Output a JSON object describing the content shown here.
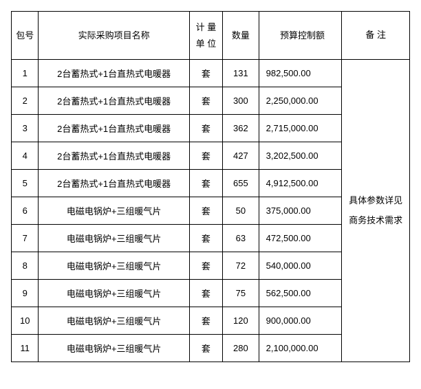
{
  "table": {
    "headers": {
      "package_no": "包号",
      "project_name": "实际采购项目名称",
      "unit": "计 量单 位",
      "quantity": "数量",
      "budget": "预算控制额",
      "remark": "备 注"
    },
    "remark_text": "具体参数详见商务技术需求",
    "rows": [
      {
        "pkg": "1",
        "name": "2台蓄热式+1台直热式电暖器",
        "unit": "套",
        "qty": "131",
        "budget": "982,500.00"
      },
      {
        "pkg": "2",
        "name": "2台蓄热式+1台直热式电暖器",
        "unit": "套",
        "qty": "300",
        "budget": "2,250,000.00"
      },
      {
        "pkg": "3",
        "name": "2台蓄热式+1台直热式电暖器",
        "unit": "套",
        "qty": "362",
        "budget": "2,715,000.00"
      },
      {
        "pkg": "4",
        "name": "2台蓄热式+1台直热式电暖器",
        "unit": "套",
        "qty": "427",
        "budget": "3,202,500.00"
      },
      {
        "pkg": "5",
        "name": "2台蓄热式+1台直热式电暖器",
        "unit": "套",
        "qty": "655",
        "budget": "4,912,500.00"
      },
      {
        "pkg": "6",
        "name": "电磁电锅炉+三组暖气片",
        "unit": "套",
        "qty": "50",
        "budget": "375,000.00"
      },
      {
        "pkg": "7",
        "name": "电磁电锅炉+三组暖气片",
        "unit": "套",
        "qty": "63",
        "budget": "472,500.00"
      },
      {
        "pkg": "8",
        "name": "电磁电锅炉+三组暖气片",
        "unit": "套",
        "qty": "72",
        "budget": "540,000.00"
      },
      {
        "pkg": "9",
        "name": "电磁电锅炉+三组暖气片",
        "unit": "套",
        "qty": "75",
        "budget": "562,500.00"
      },
      {
        "pkg": "10",
        "name": "电磁电锅炉+三组暖气片",
        "unit": "套",
        "qty": "120",
        "budget": "900,000.00"
      },
      {
        "pkg": "11",
        "name": "电磁电锅炉+三组暖气片",
        "unit": "套",
        "qty": "280",
        "budget": "2,100,000.00"
      }
    ],
    "colors": {
      "border": "#000000",
      "background": "#ffffff",
      "text": "#000000"
    },
    "font_size": 13
  }
}
